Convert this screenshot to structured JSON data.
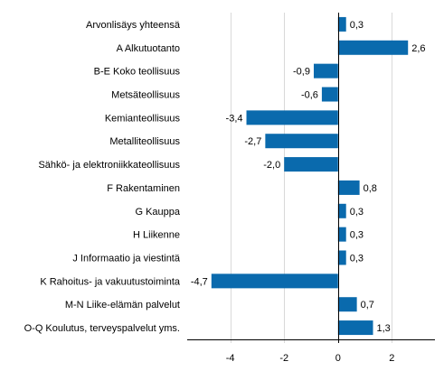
{
  "chart_data": {
    "type": "bar",
    "orientation": "horizontal",
    "categories": [
      "Arvonlisäys yhteensä",
      "A Alkutuotanto",
      "B-E Koko teollisuus",
      "Metsäteollisuus",
      "Kemianteollisuus",
      "Metalliteollisuus",
      "Sähkö- ja elektroniikkateollisuus",
      "F Rakentaminen",
      "G Kauppa",
      "H Liikenne",
      "J Informaatio ja viestintä",
      "K Rahoitus- ja vakuutustoiminta",
      "M-N Liike-elämän palvelut",
      "O-Q Koulutus, terveyspalvelut yms."
    ],
    "values": [
      0.3,
      2.6,
      -0.9,
      -0.6,
      -3.4,
      -2.7,
      -2.0,
      0.8,
      0.3,
      0.3,
      0.3,
      -4.7,
      0.7,
      1.3
    ],
    "value_labels": [
      "0,3",
      "2,6",
      "-0,9",
      "-0,6",
      "-3,4",
      "-2,7",
      "-2,0",
      "0,8",
      "0,3",
      "0,3",
      "0,3",
      "-4,7",
      "0,7",
      "1,3"
    ],
    "xlim": [
      -5.6,
      3.6
    ],
    "xticks": [
      -4,
      -2,
      0,
      2
    ],
    "xtick_labels": [
      "-4",
      "-2",
      "0",
      "2"
    ],
    "grid": "vertical",
    "legend": "none",
    "title": "",
    "xlabel": "",
    "ylabel": "",
    "bar_color": "#0a6aad",
    "grid_color": "#d9d9d9"
  }
}
